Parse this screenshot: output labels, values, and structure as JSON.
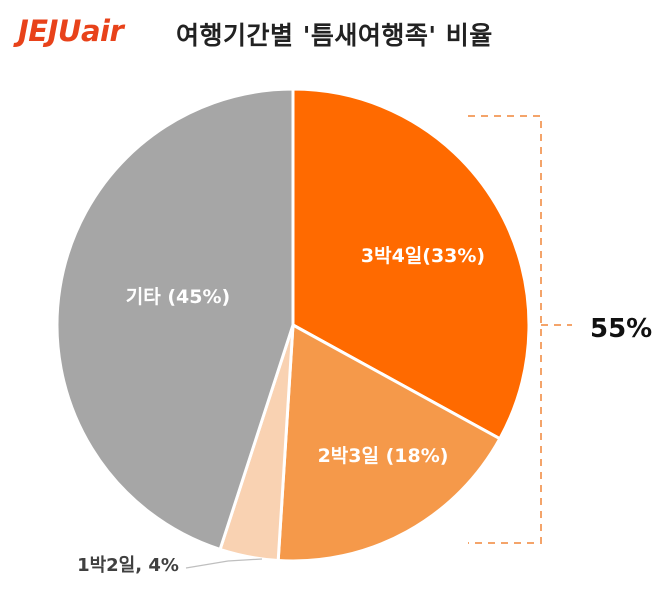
{
  "header": {
    "logo_main": "JEJU",
    "logo_air": "air",
    "title": "여행기간별 '틈새여행족' 비율"
  },
  "colors": {
    "brand": "#e8421a",
    "bracket": "#f4a46a"
  },
  "chart_data": {
    "type": "pie",
    "title": "여행기간별 '틈새여행족' 비율",
    "slices": [
      {
        "label": "3박4일(33%)",
        "value": 33,
        "color": "#ff6a00",
        "text_color": "#ffffff"
      },
      {
        "label": "2박3일 (18%)",
        "value": 18,
        "color": "#f5994a",
        "text_color": "#ffffff"
      },
      {
        "label": "1박2일, 4%",
        "value": 4,
        "color": "#f9d2b2",
        "text_color": "#404040"
      },
      {
        "label": "기타 (45%)",
        "value": 45,
        "color": "#a6a6a6",
        "text_color": "#ffffff"
      }
    ],
    "annotation": "55%"
  }
}
